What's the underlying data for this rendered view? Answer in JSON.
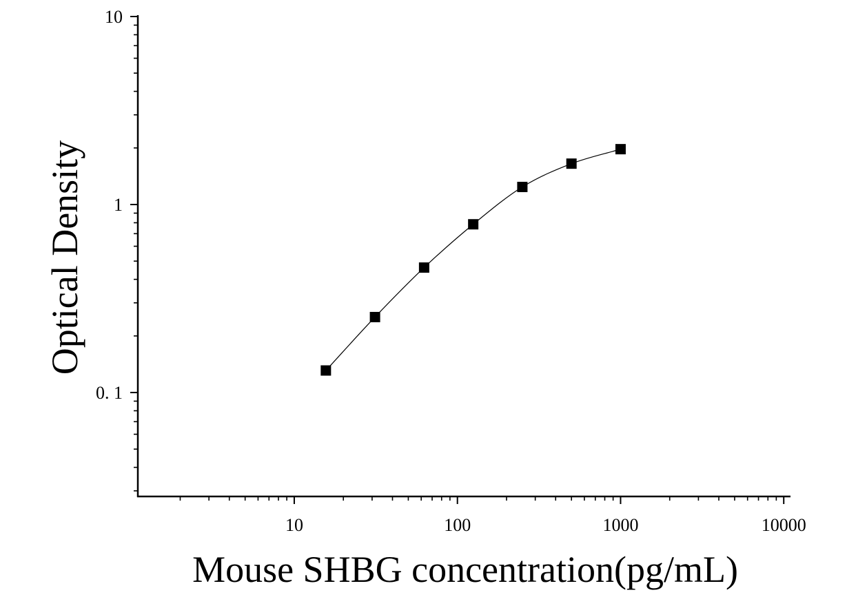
{
  "chart_data": {
    "type": "scatter",
    "title": "",
    "xlabel": "Mouse SHBG concentration(pg/mL)",
    "ylabel": "Optical Density",
    "x_scale": "log",
    "y_scale": "log",
    "xlim": [
      1.1,
      11000
    ],
    "ylim": [
      0.028,
      10
    ],
    "x_ticks": [
      {
        "value": 10,
        "label": "10"
      },
      {
        "value": 100,
        "label": "100"
      },
      {
        "value": 1000,
        "label": "1000"
      },
      {
        "value": 10000,
        "label": "10000"
      }
    ],
    "y_ticks": [
      {
        "value": 0.1,
        "label": "0. 1"
      },
      {
        "value": 1,
        "label": "1"
      },
      {
        "value": 10,
        "label": "10"
      }
    ],
    "grid": false,
    "legend": "none",
    "series": [
      {
        "x": [
          15.625,
          31.25,
          62.5,
          125,
          250,
          500,
          1000
        ],
        "y": [
          0.131,
          0.252,
          0.462,
          0.785,
          1.24,
          1.65,
          1.97
        ],
        "marker": "square",
        "line": "smooth-fit",
        "color": "#000000"
      }
    ]
  }
}
